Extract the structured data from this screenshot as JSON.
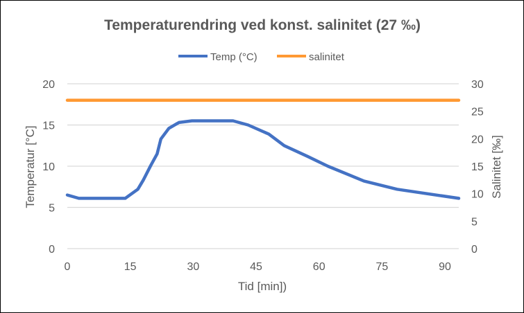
{
  "chart_data": {
    "type": "line",
    "title": "Temperaturendring ved konst. salinitet (27 ‰)",
    "xlabel": "Tid [min])",
    "ylabel": "Temperatur [°C]",
    "y2label": "Salinitet [‰]",
    "xlim": [
      0,
      93.3
    ],
    "ylim": [
      0,
      20
    ],
    "y2lim": [
      0,
      30
    ],
    "xticks": [
      0,
      15,
      30,
      45,
      60,
      75,
      90
    ],
    "yticks": [
      0,
      5,
      10,
      15,
      20
    ],
    "y2ticks": [
      0,
      5,
      10,
      15,
      20,
      25,
      30
    ],
    "grid": true,
    "legend": "top",
    "series": [
      {
        "name": "Temp (°C)",
        "axis": "left",
        "color": "#4472C4",
        "x": [
          0,
          2.75,
          13.8,
          16.8,
          18.1,
          19.9,
          21.4,
          22.3,
          24.2,
          26.6,
          29.7,
          39.5,
          43.1,
          48.0,
          51.7,
          57.2,
          62.1,
          70.7,
          78.6,
          93.3
        ],
        "y": [
          6.5,
          6.1,
          6.1,
          7.2,
          8.3,
          10.1,
          11.5,
          13.3,
          14.6,
          15.3,
          15.5,
          15.5,
          15.0,
          13.9,
          12.5,
          11.2,
          10.0,
          8.2,
          7.2,
          6.1
        ]
      },
      {
        "name": "salinitet",
        "axis": "right",
        "color": "#FF9933",
        "x": [
          0,
          93.3
        ],
        "y": [
          27,
          27
        ]
      }
    ]
  }
}
